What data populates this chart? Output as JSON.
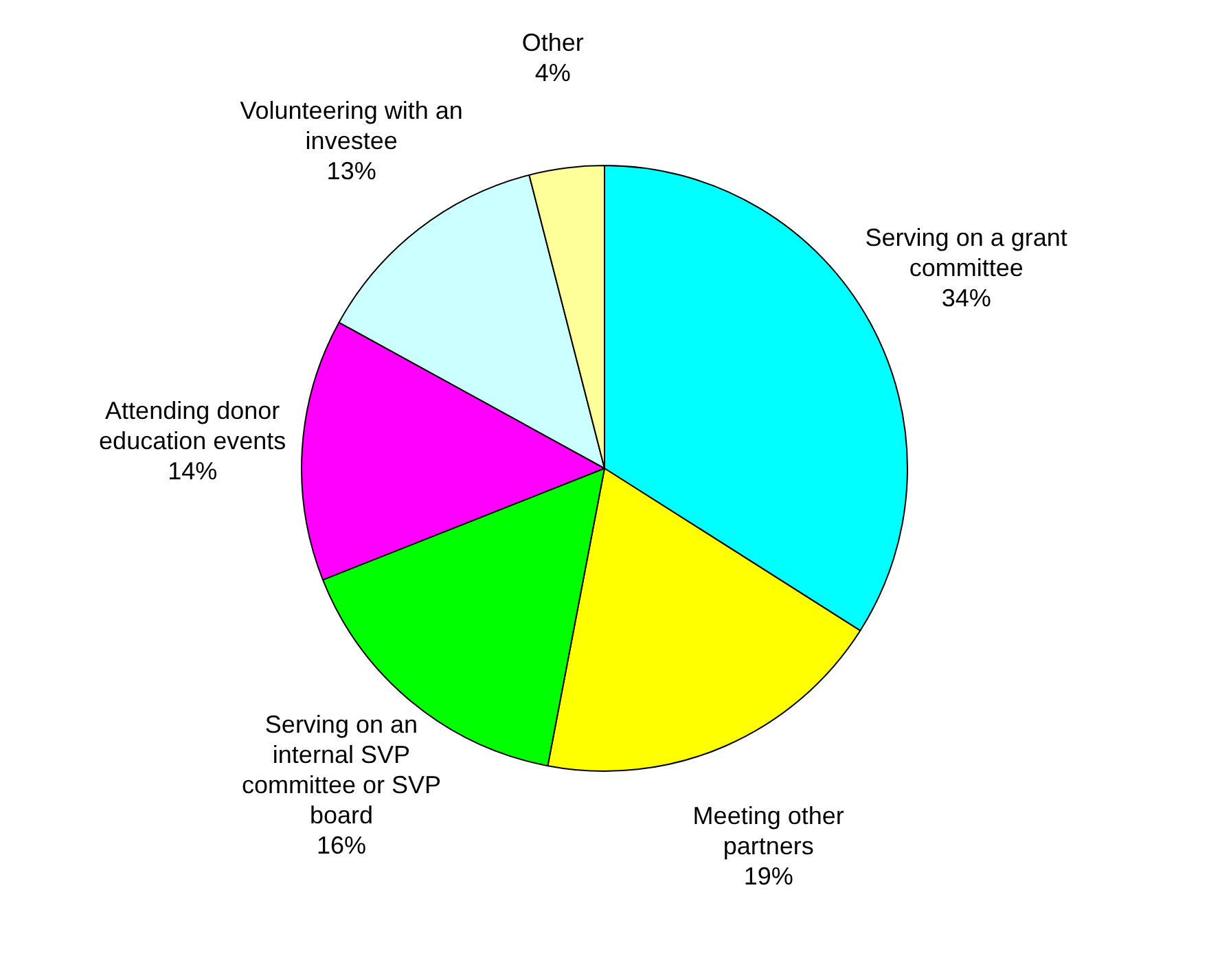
{
  "chart_data": {
    "type": "pie",
    "categories": [
      "Serving on a grant committee",
      "Meeting other partners",
      "Serving on an internal SVP committee or SVP board",
      "Attending donor education events",
      "Volunteering with an investee",
      "Other"
    ],
    "values": [
      34,
      19,
      16,
      14,
      13,
      4
    ],
    "value_labels": [
      "34%",
      "19%",
      "16%",
      "14%",
      "13%",
      "4%"
    ],
    "colors": [
      "#00ffff",
      "#ffff00",
      "#00ff00",
      "#ff00ff",
      "#ccffff",
      "#ffff99"
    ],
    "legend": false
  }
}
